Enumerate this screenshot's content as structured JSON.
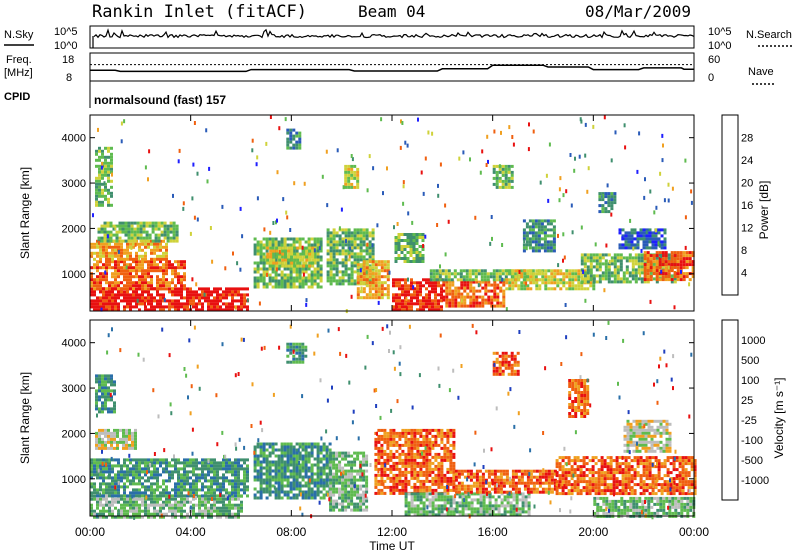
{
  "chart_data": {
    "type": "heatmap",
    "header": {
      "station": "Rankin Inlet (fitACF)",
      "beam": "Beam 04",
      "date": "08/Mar/2009"
    },
    "status_panels": {
      "nsky": {
        "label": "N.Sky",
        "right_label": "N.Search",
        "left_ticks": [
          "10^5",
          "10^0"
        ],
        "right_ticks": [
          "10^5",
          "10^0"
        ]
      },
      "freq": {
        "label_line1": "Freq.",
        "label_line2": "[MHz]",
        "right_label": "Nave",
        "left_ticks": [
          "18",
          "8"
        ],
        "right_ticks": [
          "60",
          "0"
        ],
        "freq_profile_mhz": [
          [
            0,
            11.5
          ],
          [
            1.0,
            11.5
          ],
          [
            1.2,
            11.0
          ],
          [
            6.2,
            11.0
          ],
          [
            6.4,
            11.8
          ],
          [
            10.3,
            11.8
          ],
          [
            10.5,
            11.2
          ],
          [
            13.8,
            11.2
          ],
          [
            14.0,
            12.2
          ],
          [
            15.8,
            12.2
          ],
          [
            16.0,
            13.8
          ],
          [
            18.0,
            13.8
          ],
          [
            18.2,
            13.0
          ],
          [
            19.8,
            13.0
          ],
          [
            20.0,
            11.8
          ],
          [
            21.8,
            11.8
          ],
          [
            22.0,
            12.6
          ],
          [
            23.5,
            12.6
          ],
          [
            23.6,
            12.0
          ],
          [
            24,
            12.0
          ]
        ],
        "nave_level": 35
      },
      "cpid": {
        "label": "CPID",
        "text": "normalsound (fast) 157"
      }
    },
    "x_axis": {
      "label": "Time UT",
      "range_hours": [
        0,
        24
      ],
      "ticks": [
        "00:00",
        "04:00",
        "08:00",
        "12:00",
        "16:00",
        "20:00",
        "00:00"
      ]
    },
    "y_axis": {
      "label": "Slant Range [km]",
      "range_km": [
        180,
        4500
      ],
      "ticks": [
        "1000",
        "2000",
        "3000",
        "4000"
      ]
    },
    "panels": [
      {
        "id": "power",
        "colorbar_title": "Power [dB]",
        "colorbar_ticks": [
          "28",
          "24",
          "20",
          "16",
          "12",
          "8",
          "4"
        ],
        "colors": [
          "#1f1fff",
          "#2a5bb8",
          "#3f8f6e",
          "#5fbb4f",
          "#cfd23a",
          "#f0a020",
          "#f06010",
          "#e81010"
        ],
        "regions": [
          {
            "t0": 0.0,
            "t1": 6.3,
            "r0": 180,
            "r1": 700,
            "level": 7
          },
          {
            "t0": 0.0,
            "t1": 3.8,
            "r0": 700,
            "r1": 1300,
            "level": 6
          },
          {
            "t0": 0.0,
            "t1": 3.0,
            "r0": 1300,
            "r1": 1750,
            "level": 5
          },
          {
            "t0": 0.3,
            "t1": 3.4,
            "r0": 1750,
            "r1": 2150,
            "level": 3
          },
          {
            "t0": 6.5,
            "t1": 9.2,
            "r0": 700,
            "r1": 1800,
            "level": 3
          },
          {
            "t0": 7.0,
            "t1": 8.8,
            "r0": 1200,
            "r1": 1600,
            "level": 4
          },
          {
            "t0": 9.4,
            "t1": 11.2,
            "r0": 800,
            "r1": 2000,
            "level": 3
          },
          {
            "t0": 10.6,
            "t1": 11.8,
            "r0": 450,
            "r1": 1300,
            "level": 5
          },
          {
            "t0": 12.0,
            "t1": 14.0,
            "r0": 180,
            "r1": 900,
            "level": 7
          },
          {
            "t0": 14.0,
            "t1": 16.5,
            "r0": 300,
            "r1": 850,
            "level": 6
          },
          {
            "t0": 13.5,
            "t1": 17.8,
            "r0": 850,
            "r1": 1100,
            "level": 3
          },
          {
            "t0": 16.5,
            "t1": 20.0,
            "r0": 700,
            "r1": 1100,
            "level": 4
          },
          {
            "t0": 19.5,
            "t1": 23.2,
            "r0": 850,
            "r1": 1450,
            "level": 3
          },
          {
            "t0": 22.0,
            "t1": 24.0,
            "r0": 900,
            "r1": 1500,
            "level": 6
          },
          {
            "t0": 12.1,
            "t1": 13.2,
            "r0": 1300,
            "r1": 1900,
            "level": 3
          },
          {
            "t0": 16.0,
            "t1": 16.8,
            "r0": 2900,
            "r1": 3400,
            "level": 3
          },
          {
            "t0": 10.1,
            "t1": 10.6,
            "r0": 2900,
            "r1": 3400,
            "level": 4
          },
          {
            "t0": 21.0,
            "t1": 22.8,
            "r0": 1600,
            "r1": 2000,
            "level": 1
          },
          {
            "t0": 20.2,
            "t1": 20.8,
            "r0": 2400,
            "r1": 2800,
            "level": 2
          },
          {
            "t0": 0.2,
            "t1": 0.8,
            "r0": 2500,
            "r1": 3800,
            "level": 3
          },
          {
            "t0": 7.8,
            "t1": 8.3,
            "r0": 3800,
            "r1": 4200,
            "level": 2
          },
          {
            "t0": 17.2,
            "t1": 18.4,
            "r0": 1500,
            "r1": 2200,
            "level": 2
          }
        ]
      },
      {
        "id": "velocity",
        "colorbar_title": "Velocity [m s⁻¹]",
        "colorbar_ticks": [
          "1000",
          "500",
          "100",
          "25",
          "-25",
          "-100",
          "-500",
          "-1000"
        ],
        "colors": [
          "#1f3fbf",
          "#2a6fa8",
          "#3f8f6e",
          "#5fbb4f",
          "#bdbdbd",
          "#f0a020",
          "#f06010",
          "#e81010"
        ],
        "regions": [
          {
            "t0": 0.0,
            "t1": 6.0,
            "r0": 180,
            "r1": 650,
            "level": 3
          },
          {
            "t0": 0.0,
            "t1": 6.3,
            "r0": 650,
            "r1": 1450,
            "level": 2
          },
          {
            "t0": 0.2,
            "t1": 1.8,
            "r0": 1650,
            "r1": 2100,
            "level": 4
          },
          {
            "t0": 6.5,
            "t1": 9.5,
            "r0": 600,
            "r1": 1800,
            "level": 2
          },
          {
            "t0": 9.5,
            "t1": 11.0,
            "r0": 300,
            "r1": 1600,
            "level": 3
          },
          {
            "t0": 11.3,
            "t1": 14.5,
            "r0": 700,
            "r1": 2100,
            "level": 6
          },
          {
            "t0": 12.5,
            "t1": 17.5,
            "r0": 180,
            "r1": 700,
            "level": 3
          },
          {
            "t0": 14.5,
            "t1": 18.5,
            "r0": 700,
            "r1": 1200,
            "level": 6
          },
          {
            "t0": 18.5,
            "t1": 24.0,
            "r0": 650,
            "r1": 1500,
            "level": 6
          },
          {
            "t0": 20.0,
            "t1": 24.0,
            "r0": 180,
            "r1": 600,
            "level": 3
          },
          {
            "t0": 16.0,
            "t1": 17.0,
            "r0": 3300,
            "r1": 3800,
            "level": 6
          },
          {
            "t0": 21.2,
            "t1": 23.0,
            "r0": 1600,
            "r1": 2300,
            "level": 4
          },
          {
            "t0": 7.8,
            "t1": 8.6,
            "r0": 3600,
            "r1": 4000,
            "level": 2
          },
          {
            "t0": 0.2,
            "t1": 1.0,
            "r0": 2500,
            "r1": 3300,
            "level": 2
          },
          {
            "t0": 19.0,
            "t1": 19.8,
            "r0": 2400,
            "r1": 3200,
            "level": 6
          }
        ]
      }
    ]
  }
}
